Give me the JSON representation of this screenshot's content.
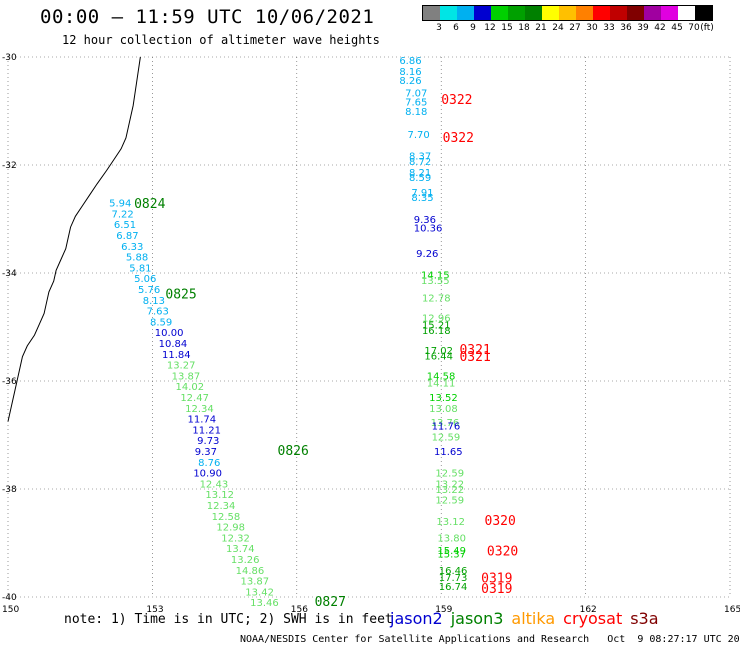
{
  "title": "00:00 – 11:59 UTC 10/06/2021",
  "subtitle": "12 hour collection of altimeter wave heights",
  "colorbar": {
    "swatches": [
      "#808080",
      "#00e5e5",
      "#00b0f0",
      "#0000d0",
      "#00d000",
      "#00a000",
      "#008000",
      "#ffff00",
      "#ffc000",
      "#ff8000",
      "#ff0000",
      "#c00000",
      "#800000",
      "#a000a0",
      "#e000e0",
      "#ffffff",
      "#000000"
    ],
    "labels": [
      "3",
      "6",
      "9",
      "12",
      "15",
      "18",
      "21",
      "24",
      "27",
      "30",
      "33",
      "36",
      "39",
      "42",
      "45",
      "70",
      "(ft)"
    ]
  },
  "axes": {
    "y_ticks": [
      {
        "lat": -30,
        "label": "-30"
      },
      {
        "lat": -32,
        "label": "-32"
      },
      {
        "lat": -34,
        "label": "-34"
      },
      {
        "lat": -36,
        "label": "-36"
      },
      {
        "lat": -38,
        "label": "-38"
      },
      {
        "lat": -40,
        "label": "-40"
      }
    ],
    "x_ticks": [
      {
        "lon": 150,
        "label": "150"
      },
      {
        "lon": 153,
        "label": "153"
      },
      {
        "lon": 156,
        "label": "156"
      },
      {
        "lon": 159,
        "label": "159"
      },
      {
        "lon": 162,
        "label": "162"
      },
      {
        "lon": 165,
        "label": "165"
      }
    ],
    "lon_range": [
      150,
      165
    ],
    "lat_range": [
      -30,
      -40
    ]
  },
  "satellite_colors": {
    "jason2": "#0000d0",
    "jason3": "#008000",
    "altika": "#ff9900",
    "cryosat": "#ff0000",
    "s3a": "#800000"
  },
  "observations": [
    {
      "lon": 158.13,
      "lat": -30.13,
      "value": "6.86",
      "color": "#00b0f0"
    },
    {
      "lon": 158.13,
      "lat": -30.33,
      "value": "8.16",
      "color": "#00b0f0"
    },
    {
      "lon": 158.13,
      "lat": -30.5,
      "value": "8.26",
      "color": "#00b0f0"
    },
    {
      "lon": 158.25,
      "lat": -30.73,
      "value": "7.07",
      "color": "#00b0f0"
    },
    {
      "lon": 158.25,
      "lat": -30.9,
      "value": "7.65",
      "color": "#00b0f0"
    },
    {
      "lon": 158.25,
      "lat": -31.07,
      "value": "8.18",
      "color": "#00b0f0"
    },
    {
      "lon": 158.3,
      "lat": -31.5,
      "value": "7.70",
      "color": "#00b0f0"
    },
    {
      "lon": 158.33,
      "lat": -31.9,
      "value": "8.37",
      "color": "#00b0f0"
    },
    {
      "lon": 158.33,
      "lat": -32.0,
      "value": "8.72",
      "color": "#00b0f0"
    },
    {
      "lon": 158.33,
      "lat": -32.2,
      "value": "8.21",
      "color": "#00b0f0"
    },
    {
      "lon": 158.33,
      "lat": -32.3,
      "value": "8.59",
      "color": "#00b0f0"
    },
    {
      "lon": 158.38,
      "lat": -32.57,
      "value": "7.91",
      "color": "#00b0f0"
    },
    {
      "lon": 158.38,
      "lat": -32.67,
      "value": "8.35",
      "color": "#00b0f0"
    },
    {
      "lon": 158.43,
      "lat": -33.07,
      "value": "9.36",
      "color": "#0000d0"
    },
    {
      "lon": 158.43,
      "lat": -33.23,
      "value": "10.36",
      "color": "#0000d0"
    },
    {
      "lon": 158.48,
      "lat": -33.7,
      "value": "9.26",
      "color": "#0000d0"
    },
    {
      "lon": 158.58,
      "lat": -34.1,
      "value": "14.15",
      "color": "#00d000"
    },
    {
      "lon": 158.58,
      "lat": -34.2,
      "value": "13.55",
      "color": "#66e066"
    },
    {
      "lon": 158.6,
      "lat": -34.53,
      "value": "12.78",
      "color": "#66e066"
    },
    {
      "lon": 158.6,
      "lat": -34.9,
      "value": "12.96",
      "color": "#66e066"
    },
    {
      "lon": 158.6,
      "lat": -35.03,
      "value": "15.21",
      "color": "#00a000"
    },
    {
      "lon": 158.6,
      "lat": -35.13,
      "value": "16.18",
      "color": "#00a000"
    },
    {
      "lon": 158.65,
      "lat": -35.5,
      "value": "17.02",
      "color": "#00a000"
    },
    {
      "lon": 158.65,
      "lat": -35.6,
      "value": "16.44",
      "color": "#00a000"
    },
    {
      "lon": 158.7,
      "lat": -35.97,
      "value": "14.58",
      "color": "#00d000"
    },
    {
      "lon": 158.7,
      "lat": -36.1,
      "value": "14.11",
      "color": "#66e066"
    },
    {
      "lon": 158.75,
      "lat": -36.37,
      "value": "13.52",
      "color": "#00d000"
    },
    {
      "lon": 158.75,
      "lat": -36.57,
      "value": "13.08",
      "color": "#66e066"
    },
    {
      "lon": 158.78,
      "lat": -36.83,
      "value": "13.76",
      "color": "#66e066"
    },
    {
      "lon": 158.8,
      "lat": -36.9,
      "value": "11.76",
      "color": "#0000d0"
    },
    {
      "lon": 158.8,
      "lat": -37.1,
      "value": "12.59",
      "color": "#66e066"
    },
    {
      "lon": 158.85,
      "lat": -37.37,
      "value": "11.65",
      "color": "#0000d0"
    },
    {
      "lon": 158.88,
      "lat": -37.77,
      "value": "12.59",
      "color": "#66e066"
    },
    {
      "lon": 158.88,
      "lat": -37.97,
      "value": "13.22",
      "color": "#66e066"
    },
    {
      "lon": 158.88,
      "lat": -38.07,
      "value": "13.22",
      "color": "#66e066"
    },
    {
      "lon": 158.88,
      "lat": -38.27,
      "value": "12.59",
      "color": "#66e066"
    },
    {
      "lon": 158.9,
      "lat": -38.67,
      "value": "13.12",
      "color": "#66e066"
    },
    {
      "lon": 158.92,
      "lat": -38.97,
      "value": "13.80",
      "color": "#66e066"
    },
    {
      "lon": 158.92,
      "lat": -39.2,
      "value": "15.49",
      "color": "#00d000"
    },
    {
      "lon": 158.92,
      "lat": -39.27,
      "value": "15.37",
      "color": "#00d000"
    },
    {
      "lon": 158.95,
      "lat": -39.57,
      "value": "16.46",
      "color": "#00a000"
    },
    {
      "lon": 158.95,
      "lat": -39.7,
      "value": "17.73",
      "color": "#00a000"
    },
    {
      "lon": 158.95,
      "lat": -39.87,
      "value": "16.74",
      "color": "#00a000"
    },
    {
      "lon": 152.1,
      "lat": -32.77,
      "value": "5.94",
      "color": "#00b0f0"
    },
    {
      "lon": 152.15,
      "lat": -32.97,
      "value": "7.22",
      "color": "#00b0f0"
    },
    {
      "lon": 152.2,
      "lat": -33.17,
      "value": "6.51",
      "color": "#00b0f0"
    },
    {
      "lon": 152.25,
      "lat": -33.37,
      "value": "6.87",
      "color": "#00b0f0"
    },
    {
      "lon": 152.35,
      "lat": -33.57,
      "value": "6.33",
      "color": "#00b0f0"
    },
    {
      "lon": 152.45,
      "lat": -33.77,
      "value": "5.88",
      "color": "#00b0f0"
    },
    {
      "lon": 152.52,
      "lat": -33.97,
      "value": "5.81",
      "color": "#00b0f0"
    },
    {
      "lon": 152.62,
      "lat": -34.17,
      "value": "5.06",
      "color": "#00b0f0"
    },
    {
      "lon": 152.7,
      "lat": -34.37,
      "value": "5.76",
      "color": "#00b0f0"
    },
    {
      "lon": 152.8,
      "lat": -34.57,
      "value": "8.13",
      "color": "#00b0f0"
    },
    {
      "lon": 152.88,
      "lat": -34.77,
      "value": "7.63",
      "color": "#00b0f0"
    },
    {
      "lon": 152.95,
      "lat": -34.97,
      "value": "8.59",
      "color": "#00b0f0"
    },
    {
      "lon": 153.05,
      "lat": -35.17,
      "value": "10.00",
      "color": "#0000d0"
    },
    {
      "lon": 153.13,
      "lat": -35.37,
      "value": "10.84",
      "color": "#0000d0"
    },
    {
      "lon": 153.2,
      "lat": -35.57,
      "value": "11.84",
      "color": "#0000d0"
    },
    {
      "lon": 153.3,
      "lat": -35.77,
      "value": "13.27",
      "color": "#66e066"
    },
    {
      "lon": 153.4,
      "lat": -35.97,
      "value": "13.87",
      "color": "#66e066"
    },
    {
      "lon": 153.48,
      "lat": -36.17,
      "value": "14.02",
      "color": "#66e066"
    },
    {
      "lon": 153.58,
      "lat": -36.37,
      "value": "12.47",
      "color": "#66e066"
    },
    {
      "lon": 153.68,
      "lat": -36.57,
      "value": "12.34",
      "color": "#66e066"
    },
    {
      "lon": 153.73,
      "lat": -36.77,
      "value": "11.74",
      "color": "#0000d0"
    },
    {
      "lon": 153.83,
      "lat": -36.97,
      "value": "11.21",
      "color": "#0000d0"
    },
    {
      "lon": 153.93,
      "lat": -37.17,
      "value": "9.73",
      "color": "#0000d0"
    },
    {
      "lon": 153.88,
      "lat": -37.37,
      "value": "9.37",
      "color": "#0000d0"
    },
    {
      "lon": 153.95,
      "lat": -37.57,
      "value": "8.76",
      "color": "#00b0f0"
    },
    {
      "lon": 153.85,
      "lat": -37.77,
      "value": "10.90",
      "color": "#0000d0"
    },
    {
      "lon": 153.98,
      "lat": -37.97,
      "value": "12.43",
      "color": "#66e066"
    },
    {
      "lon": 154.1,
      "lat": -38.17,
      "value": "13.12",
      "color": "#66e066"
    },
    {
      "lon": 154.13,
      "lat": -38.37,
      "value": "12.34",
      "color": "#66e066"
    },
    {
      "lon": 154.23,
      "lat": -38.57,
      "value": "12.58",
      "color": "#66e066"
    },
    {
      "lon": 154.33,
      "lat": -38.77,
      "value": "12.98",
      "color": "#66e066"
    },
    {
      "lon": 154.43,
      "lat": -38.97,
      "value": "12.32",
      "color": "#66e066"
    },
    {
      "lon": 154.53,
      "lat": -39.17,
      "value": "13.74",
      "color": "#66e066"
    },
    {
      "lon": 154.63,
      "lat": -39.37,
      "value": "13.26",
      "color": "#66e066"
    },
    {
      "lon": 154.73,
      "lat": -39.57,
      "value": "14.86",
      "color": "#66e066"
    },
    {
      "lon": 154.83,
      "lat": -39.77,
      "value": "13.87",
      "color": "#66e066"
    },
    {
      "lon": 154.93,
      "lat": -39.97,
      "value": "13.42",
      "color": "#66e066"
    },
    {
      "lon": 155.03,
      "lat": -40.17,
      "value": "13.46",
      "color": "#66e066"
    }
  ],
  "time_labels": [
    {
      "lon": 159.0,
      "lat": -30.87,
      "value": "0322",
      "color": "#ff0000"
    },
    {
      "lon": 159.03,
      "lat": -31.57,
      "value": "0322",
      "color": "#ff0000"
    },
    {
      "lon": 159.38,
      "lat": -35.5,
      "value": "0321",
      "color": "#ff0000"
    },
    {
      "lon": 159.38,
      "lat": -35.63,
      "value": "0321",
      "color": "#ff0000"
    },
    {
      "lon": 159.9,
      "lat": -38.67,
      "value": "0320",
      "color": "#ff0000"
    },
    {
      "lon": 159.95,
      "lat": -39.23,
      "value": "0320",
      "color": "#ff0000"
    },
    {
      "lon": 159.83,
      "lat": -39.73,
      "value": "0319",
      "color": "#ff0000"
    },
    {
      "lon": 159.83,
      "lat": -39.93,
      "value": "0319",
      "color": "#ff0000"
    },
    {
      "lon": 152.62,
      "lat": -32.8,
      "value": "0824",
      "color": "#008000"
    },
    {
      "lon": 153.27,
      "lat": -34.47,
      "value": "0825",
      "color": "#008000"
    },
    {
      "lon": 155.6,
      "lat": -37.37,
      "value": "0826",
      "color": "#008000"
    },
    {
      "lon": 156.37,
      "lat": -40.17,
      "value": "0827",
      "color": "#008000"
    }
  ],
  "note": "note: 1) Time is in UTC; 2) SWH is in feet",
  "legend": [
    {
      "name": "jason2",
      "color": "#0000d0"
    },
    {
      "name": "jason3",
      "color": "#008000"
    },
    {
      "name": "altika",
      "color": "#ff9900"
    },
    {
      "name": "cryosat",
      "color": "#ff0000"
    },
    {
      "name": "s3a",
      "color": "#800000"
    }
  ],
  "footer": "NOAA/NESDIS Center for Satellite Applications and Research   Oct  9 08:27:17 UTC 2021"
}
